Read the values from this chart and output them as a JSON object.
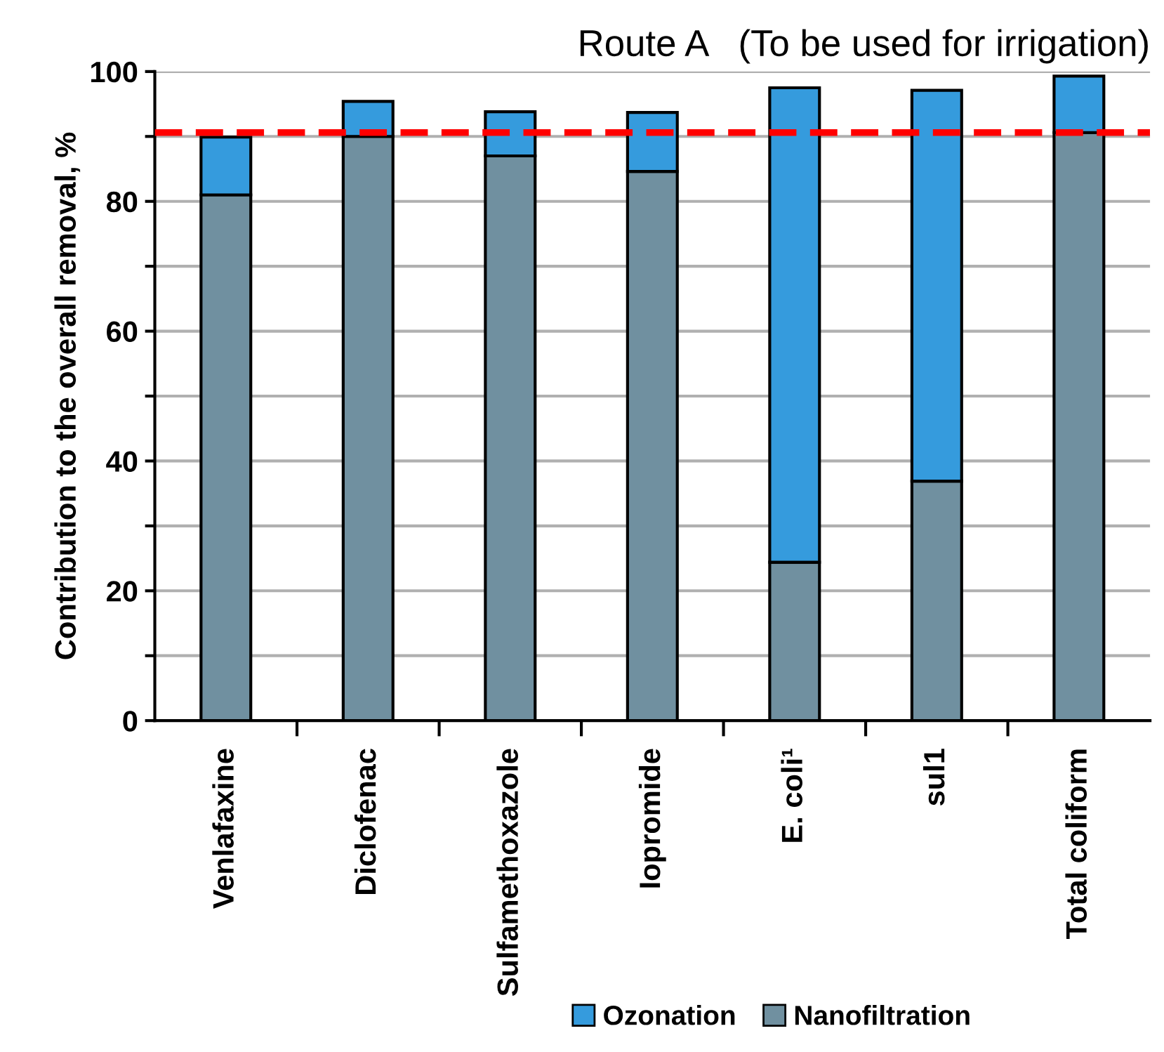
{
  "chart_data": {
    "type": "bar",
    "stacked": true,
    "title": "Route A   (To be used for irrigation)",
    "ylabel": "Contribution to the overall removal, %",
    "categories": [
      "Venlafaxine",
      "Diclofenac",
      "Sulfamethoxazole",
      "Iopromide",
      "E. coli¹",
      "sul1",
      "Total coliform"
    ],
    "series": [
      {
        "name": "Nanofiltration",
        "color": "#7090a0",
        "values": [
          81,
          90,
          87,
          84.6,
          24.4,
          36.9,
          90.6
        ]
      },
      {
        "name": "Ozonation",
        "color": "#359bdd",
        "values": [
          8.9,
          5.4,
          6.8,
          9.1,
          73.1,
          60.2,
          8.7
        ]
      }
    ],
    "ylim": [
      0,
      100
    ],
    "yticks": [
      0,
      {
        "value": 10,
        "label": null
      },
      20,
      {
        "value": 30,
        "label": null
      },
      40,
      {
        "value": 50,
        "label": null
      },
      60,
      {
        "value": 70,
        "label": null
      },
      80,
      {
        "value": 90,
        "label": null
      },
      100
    ],
    "grid": "y",
    "legend": "bottom",
    "ref_lines": [
      {
        "axis": "y",
        "value": 90.6,
        "color": "#ff0000",
        "line_style": "dashed"
      }
    ]
  }
}
